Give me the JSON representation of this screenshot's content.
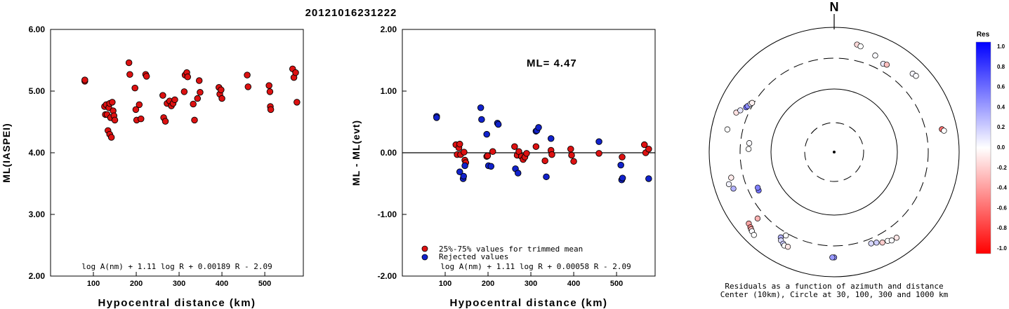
{
  "event_id": "20121016231222",
  "chart_data": [
    {
      "type": "scatter",
      "xlabel": "Hypocentral distance (km)",
      "ylabel": "ML(IASPEI)",
      "xlim": [
        0,
        590
      ],
      "ylim": [
        2.0,
        6.0
      ],
      "x_ticks": [
        "100",
        "200",
        "300",
        "400",
        "500"
      ],
      "y_ticks": [
        "6.00",
        "5.00",
        "4.00",
        "3.00",
        "2.00"
      ],
      "formula": "log A(nm) + 1.11 log R + 0.00189 R - 2.09",
      "marker_color": "#dd1111",
      "points": [
        [
          80,
          5.16
        ],
        [
          80,
          5.18
        ],
        [
          126,
          4.75
        ],
        [
          128,
          4.62
        ],
        [
          130,
          4.78
        ],
        [
          132,
          4.62
        ],
        [
          134,
          4.36
        ],
        [
          136,
          4.73
        ],
        [
          138,
          4.8
        ],
        [
          138,
          4.3
        ],
        [
          140,
          4.57
        ],
        [
          142,
          4.25
        ],
        [
          144,
          4.82
        ],
        [
          146,
          4.68
        ],
        [
          148,
          4.6
        ],
        [
          150,
          4.53
        ],
        [
          183,
          5.46
        ],
        [
          185,
          5.27
        ],
        [
          197,
          5.05
        ],
        [
          199,
          4.7
        ],
        [
          201,
          4.53
        ],
        [
          207,
          4.78
        ],
        [
          211,
          4.55
        ],
        [
          222,
          5.27
        ],
        [
          224,
          5.24
        ],
        [
          262,
          4.93
        ],
        [
          264,
          4.57
        ],
        [
          268,
          4.51
        ],
        [
          272,
          4.8
        ],
        [
          278,
          4.84
        ],
        [
          282,
          4.76
        ],
        [
          286,
          4.8
        ],
        [
          290,
          4.86
        ],
        [
          312,
          4.99
        ],
        [
          314,
          5.26
        ],
        [
          318,
          5.3
        ],
        [
          320,
          5.23
        ],
        [
          333,
          4.79
        ],
        [
          336,
          4.53
        ],
        [
          343,
          4.88
        ],
        [
          347,
          5.17
        ],
        [
          349,
          4.98
        ],
        [
          393,
          5.06
        ],
        [
          395,
          4.95
        ],
        [
          398,
          5.02
        ],
        [
          400,
          4.88
        ],
        [
          459,
          5.26
        ],
        [
          461,
          5.07
        ],
        [
          510,
          5.09
        ],
        [
          512,
          4.99
        ],
        [
          513,
          4.75
        ],
        [
          514,
          4.7
        ],
        [
          565,
          5.36
        ],
        [
          568,
          5.22
        ],
        [
          572,
          5.3
        ],
        [
          575,
          4.82
        ]
      ]
    },
    {
      "type": "scatter",
      "xlabel": "Hypocentral distance (km)",
      "ylabel": "ML - ML(evt)",
      "xlim": [
        0,
        590
      ],
      "ylim": [
        -2.0,
        2.0
      ],
      "x_ticks": [
        "100",
        "200",
        "300",
        "400",
        "500"
      ],
      "y_ticks": [
        "2.00",
        "1.00",
        "0.00",
        "-1.00",
        "-2.00"
      ],
      "annotation": "ML=  4.47",
      "formula": "log A(nm) + 1.11 log R + 0.00058 R - 2.09",
      "legend": [
        {
          "label": "25%-75% values for trimmed mean",
          "color": "#dd1111"
        },
        {
          "label": "Rejected values",
          "color": "#1122cc"
        }
      ],
      "series": [
        {
          "name": "25%-75% values for trimmed mean",
          "color": "#dd1111",
          "points": [
            [
              125,
              0.13
            ],
            [
              128,
              -0.03
            ],
            [
              132,
              0.08
            ],
            [
              134,
              0.14
            ],
            [
              136,
              -0.03
            ],
            [
              144,
              0.01
            ],
            [
              146,
              -0.12
            ],
            [
              148,
              -0.16
            ],
            [
              197,
              -0.06
            ],
            [
              199,
              -0.05
            ],
            [
              211,
              0.02
            ],
            [
              262,
              0.1
            ],
            [
              268,
              -0.04
            ],
            [
              272,
              0.02
            ],
            [
              278,
              -0.06
            ],
            [
              282,
              -0.11
            ],
            [
              286,
              -0.07
            ],
            [
              290,
              -0.01
            ],
            [
              312,
              0.1
            ],
            [
              333,
              -0.13
            ],
            [
              347,
              0.04
            ],
            [
              349,
              -0.03
            ],
            [
              393,
              0.06
            ],
            [
              395,
              -0.04
            ],
            [
              400,
              -0.14
            ],
            [
              459,
              -0.01
            ],
            [
              513,
              -0.07
            ],
            [
              565,
              0.13
            ],
            [
              568,
              0.0
            ],
            [
              575,
              0.06
            ]
          ]
        },
        {
          "name": "Rejected values",
          "color": "#1122cc",
          "points": [
            [
              80,
              0.59
            ],
            [
              80,
              0.57
            ],
            [
              134,
              -0.31
            ],
            [
              142,
              -0.42
            ],
            [
              143,
              -0.38
            ],
            [
              146,
              -0.21
            ],
            [
              183,
              0.73
            ],
            [
              185,
              0.54
            ],
            [
              197,
              0.3
            ],
            [
              201,
              -0.21
            ],
            [
              207,
              -0.22
            ],
            [
              222,
              0.48
            ],
            [
              224,
              0.46
            ],
            [
              264,
              -0.26
            ],
            [
              270,
              -0.33
            ],
            [
              312,
              0.35
            ],
            [
              314,
              0.36
            ],
            [
              318,
              0.41
            ],
            [
              336,
              -0.39
            ],
            [
              347,
              0.23
            ],
            [
              459,
              0.18
            ],
            [
              510,
              -0.2
            ],
            [
              512,
              -0.44
            ],
            [
              514,
              -0.41
            ],
            [
              575,
              -0.42
            ]
          ]
        }
      ]
    },
    {
      "type": "polar-scatter",
      "north_label": "N",
      "caption_line1": "Residuals as a function of azimuth and distance",
      "caption_line2": "Center (10km), Circle at 30, 100, 300 and 1000 km",
      "colorbar_title": "Res",
      "colorbar_ticks": [
        "1.0",
        "0.8",
        "0.6",
        "0.4",
        "0.2",
        "0.0",
        "-0.2",
        "-0.4",
        "-0.6",
        "-0.8",
        "-1.0"
      ],
      "circle_distances_km": [
        30,
        100,
        300,
        1000
      ],
      "stations": [
        {
          "az": 12,
          "dist_km": 560,
          "res": -0.15
        },
        {
          "az": 14,
          "dist_km": 540,
          "res": 0.0
        },
        {
          "az": 23,
          "dist_km": 460,
          "res": 0.02
        },
        {
          "az": 29,
          "dist_km": 395,
          "res": 0.08
        },
        {
          "az": 31,
          "dist_km": 410,
          "res": -0.25
        },
        {
          "az": 45,
          "dist_km": 580,
          "res": 0.04
        },
        {
          "az": 47,
          "dist_km": 600,
          "res": 0.02
        },
        {
          "az": 78,
          "dist_km": 560,
          "res": -0.55
        },
        {
          "az": 79,
          "dist_km": 600,
          "res": 0.0
        },
        {
          "az": 292,
          "dist_km": 470,
          "res": -0.12
        },
        {
          "az": 294,
          "dist_km": 420,
          "res": 0.1
        },
        {
          "az": 297,
          "dist_km": 360,
          "res": 0.55
        },
        {
          "az": 298,
          "dist_km": 350,
          "res": 0.45
        },
        {
          "az": 300,
          "dist_km": 330,
          "res": 0.08
        },
        {
          "az": 301,
          "dist_km": 320,
          "res": -0.05
        },
        {
          "az": 282,
          "dist_km": 540,
          "res": 0.0
        },
        {
          "az": 276,
          "dist_km": 220,
          "res": 0.02
        },
        {
          "az": 272,
          "dist_km": 222,
          "res": 0.0
        },
        {
          "az": 243,
          "dist_km": 215,
          "res": 0.55
        },
        {
          "az": 245,
          "dist_km": 212,
          "res": 0.5
        },
        {
          "az": 250,
          "dist_km": 500,
          "res": 0.3
        },
        {
          "az": 253,
          "dist_km": 560,
          "res": 0.05
        },
        {
          "az": 256,
          "dist_km": 480,
          "res": -0.08
        },
        {
          "az": 229,
          "dist_km": 400,
          "res": -0.3
        },
        {
          "az": 230,
          "dist_km": 590,
          "res": -0.35
        },
        {
          "az": 228,
          "dist_km": 620,
          "res": -0.45
        },
        {
          "az": 227,
          "dist_km": 640,
          "res": -0.25
        },
        {
          "az": 226,
          "dist_km": 660,
          "res": 0.02
        },
        {
          "az": 224,
          "dist_km": 690,
          "res": 0.0
        },
        {
          "az": 210,
          "dist_km": 330,
          "res": 0.0
        },
        {
          "az": 212,
          "dist_km": 390,
          "res": 0.3
        },
        {
          "az": 211,
          "dist_km": 430,
          "res": 0.15
        },
        {
          "az": 209,
          "dist_km": 460,
          "res": 0.2
        },
        {
          "az": 208,
          "dist_km": 480,
          "res": 0.0
        },
        {
          "az": 206,
          "dist_km": 470,
          "res": -0.1
        },
        {
          "az": 158,
          "dist_km": 360,
          "res": 0.15
        },
        {
          "az": 155,
          "dist_km": 380,
          "res": 0.2
        },
        {
          "az": 152,
          "dist_km": 420,
          "res": -0.2
        },
        {
          "az": 149,
          "dist_km": 440,
          "res": 0.0
        },
        {
          "az": 147,
          "dist_km": 470,
          "res": 0.02
        },
        {
          "az": 144,
          "dist_km": 480,
          "res": -0.1
        },
        {
          "az": 180,
          "dist_km": 470,
          "res": 0.45
        },
        {
          "az": 181,
          "dist_km": 470,
          "res": 0.4
        }
      ]
    }
  ]
}
